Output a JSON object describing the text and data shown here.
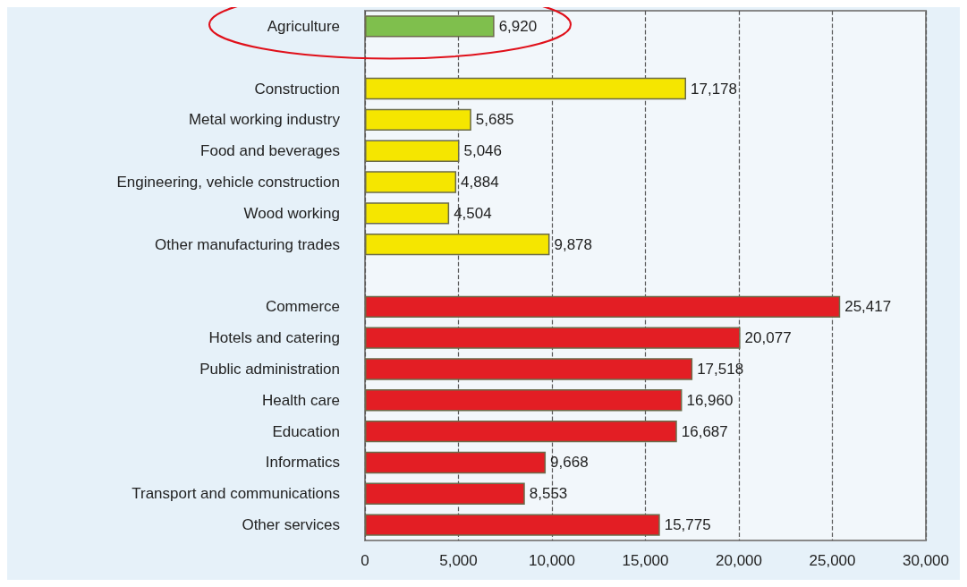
{
  "chart_data": {
    "type": "bar",
    "orientation": "horizontal",
    "categories": [
      "Agriculture",
      null,
      "Construction",
      "Metal working industry",
      "Food and beverages",
      "Engineering, vehicle construction",
      "Wood working",
      "Other manufacturing trades",
      null,
      "Commerce",
      "Hotels and catering",
      "Public administration",
      "Health care",
      "Education",
      "Informatics",
      "Transport and communications",
      "Other services"
    ],
    "values": [
      6920,
      null,
      17178,
      5685,
      5046,
      4884,
      4504,
      9878,
      null,
      25417,
      20077,
      17518,
      16960,
      16687,
      9668,
      8553,
      15775
    ],
    "colors": [
      "#7fbf4d",
      null,
      "#f5e600",
      "#f5e600",
      "#f5e600",
      "#f5e600",
      "#f5e600",
      "#f5e600",
      null,
      "#e31e24",
      "#e31e24",
      "#e31e24",
      "#e31e24",
      "#e31e24",
      "#e31e24",
      "#e31e24",
      "#e31e24"
    ],
    "xlim": [
      0,
      30000
    ],
    "xticks": [
      0,
      {
        "value": 5000,
        "label": "5,000"
      },
      {
        "value": 10000,
        "label": "10,000"
      },
      {
        "value": 15000,
        "label": "15,000"
      },
      {
        "value": 20000,
        "label": "20,000"
      },
      {
        "value": 25000,
        "label": "25,000"
      },
      {
        "value": 30000,
        "label": "30,000"
      }
    ],
    "value_labels": [
      "6,920",
      null,
      "17,178",
      "5,685",
      "5,046",
      "4,884",
      "4,504",
      "9,878",
      null,
      "25,417",
      "20,077",
      "17,518",
      "16,960",
      "16,687",
      "9,668",
      "8,553",
      "15,775"
    ],
    "grid": "x"
  }
}
